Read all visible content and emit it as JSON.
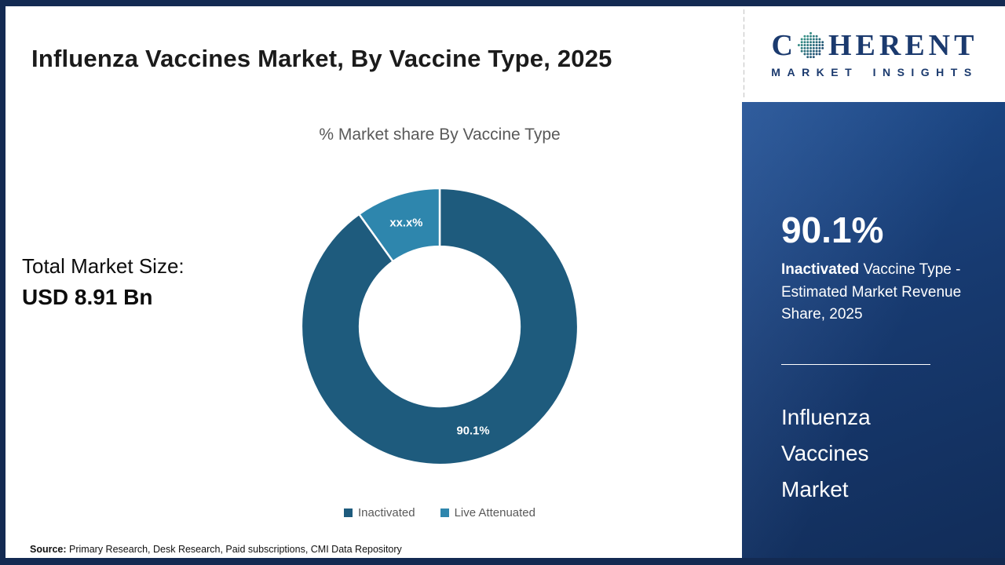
{
  "frame": {
    "color": "#132a52"
  },
  "header": {
    "title": "Influenza Vaccines Market, By Vaccine Type, 2025"
  },
  "logo": {
    "part1": "C",
    "part2": "HERENT",
    "subtitle": "MARKET INSIGHTS",
    "color": "#1b3a6e"
  },
  "left_panel": {
    "label": "Total Market Size:",
    "value": "USD 8.91 Bn"
  },
  "chart_data": {
    "type": "pie",
    "donut": true,
    "title": "% Market share By Vaccine Type",
    "categories": [
      "Inactivated",
      "Live Attenuated"
    ],
    "values": [
      90.1,
      9.9
    ],
    "slice_labels": [
      "90.1%",
      "xx.x%"
    ],
    "colors": [
      "#1e5b7d",
      "#2e86ad"
    ],
    "legend_position": "bottom",
    "start_angle_deg": 0,
    "direction": "clockwise",
    "inner_radius_ratio": 0.58
  },
  "sidebar": {
    "background": "#16386b",
    "stat_value": "90.1%",
    "stat_highlight": "Inactivated",
    "stat_desc": "Vaccine Type - Estimated Market Revenue Share, 2025",
    "market_name": "Influenza Vaccines Market"
  },
  "footer": {
    "source_label": "Source:",
    "source_text": "Primary Research, Desk Research, Paid subscriptions, CMI Data Repository"
  }
}
